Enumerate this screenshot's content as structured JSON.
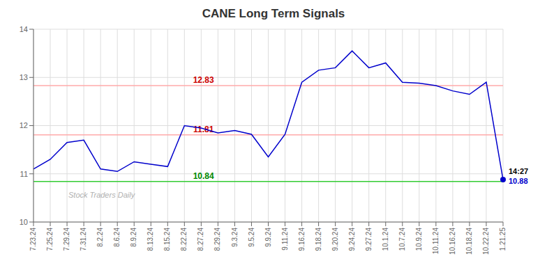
{
  "chart_data": {
    "type": "line",
    "title": "CANE Long Term Signals",
    "categories": [
      "7.23.24",
      "7.25.24",
      "7.29.24",
      "7.31.24",
      "8.2.24",
      "8.6.24",
      "8.9.24",
      "8.13.24",
      "8.15.24",
      "8.22.24",
      "8.27.24",
      "8.29.24",
      "9.3.24",
      "9.5.24",
      "9.9.24",
      "9.11.24",
      "9.16.24",
      "9.18.24",
      "9.20.24",
      "9.24.24",
      "9.27.24",
      "10.1.24",
      "10.7.24",
      "10.9.24",
      "10.11.24",
      "10.16.24",
      "10.18.24",
      "10.22.24",
      "1.21.25"
    ],
    "values": [
      11.1,
      11.3,
      11.65,
      11.7,
      11.1,
      11.05,
      11.25,
      11.2,
      11.15,
      12.0,
      11.95,
      11.85,
      11.9,
      11.82,
      11.35,
      11.82,
      12.9,
      13.15,
      13.2,
      13.55,
      13.2,
      13.3,
      12.9,
      12.88,
      12.83,
      12.72,
      12.65,
      12.9,
      10.88
    ],
    "color": "#0000cc",
    "ylim": [
      10,
      14
    ],
    "yticks": [
      10,
      11,
      12,
      13,
      14
    ],
    "grid": true,
    "hlines": [
      {
        "value": 12.83,
        "label": "12.83",
        "color": "#ffaaaa",
        "label_color": "#cc0000"
      },
      {
        "value": 11.81,
        "label": "11.81",
        "color": "#ffaaaa",
        "label_color": "#cc0000"
      },
      {
        "value": 10.84,
        "label": "10.84",
        "color": "#33cc33",
        "label_color": "#008800"
      }
    ],
    "end_annotation": [
      "14:27",
      "10.88"
    ],
    "watermark": "Stock Traders Daily"
  }
}
